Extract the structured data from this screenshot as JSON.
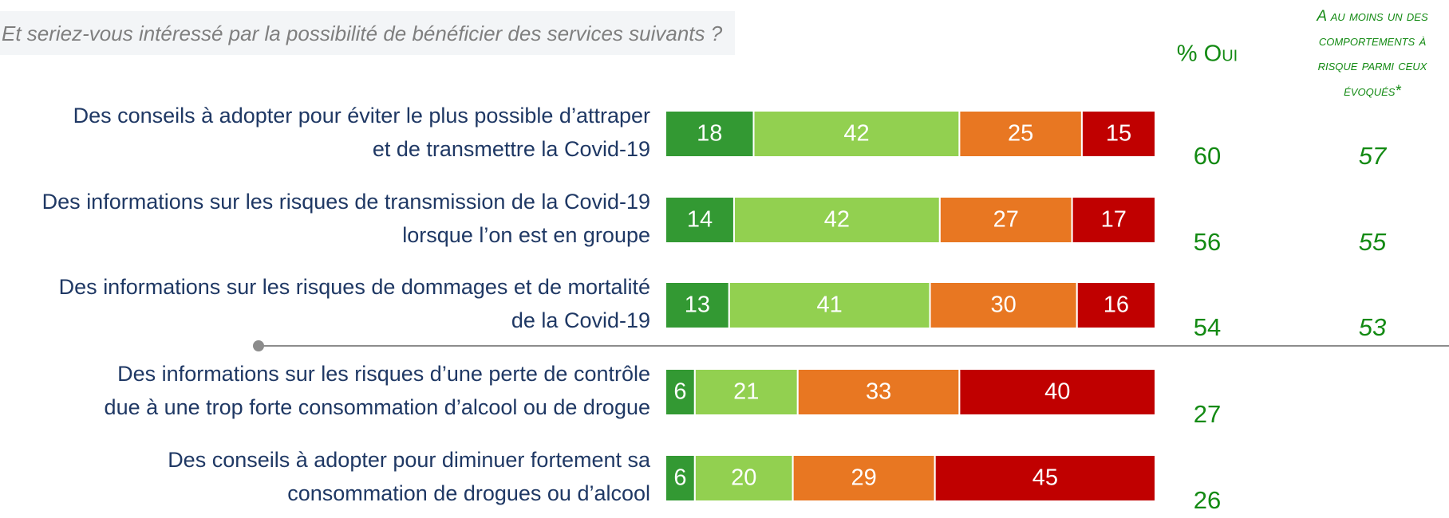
{
  "chart_data": {
    "type": "bar",
    "stacked": true,
    "orientation": "horizontal",
    "subtitle": "Et seriez-vous intéressé par la possibilité de bénéficier des services suivants ?",
    "categories": [
      [
        "Des conseils à adopter pour éviter le plus possible d’attraper",
        "et de transmettre la Covid-19"
      ],
      [
        "Des informations sur les risques de transmission de la Covid-19",
        "lorsque l’on est en groupe"
      ],
      [
        "Des informations sur les risques de dommages et de mortalité",
        "de la Covid-19"
      ],
      [
        "Des informations sur les risques d’une perte de contrôle",
        "due à une trop forte consommation d’alcool ou de drogue"
      ],
      [
        "Des conseils à adopter pour diminuer fortement sa",
        "consommation de drogues ou d’alcool"
      ]
    ],
    "series": [
      {
        "color": "#339933",
        "values": [
          18,
          14,
          13,
          6,
          6
        ]
      },
      {
        "color": "#92d050",
        "values": [
          42,
          42,
          41,
          21,
          20
        ]
      },
      {
        "color": "#e87722",
        "values": [
          25,
          27,
          30,
          33,
          29
        ]
      },
      {
        "color": "#c00000",
        "values": [
          15,
          17,
          16,
          40,
          45
        ]
      }
    ],
    "xlim": [
      0,
      100
    ],
    "columns": [
      {
        "header": [
          "% Oui"
        ],
        "values": [
          60,
          56,
          54,
          27,
          26
        ]
      },
      {
        "header": [
          "A au moins un des",
          "comportements à",
          "risque parmi ceux",
          "évoqués*"
        ],
        "values": [
          57,
          55,
          53,
          null,
          null
        ]
      }
    ]
  }
}
